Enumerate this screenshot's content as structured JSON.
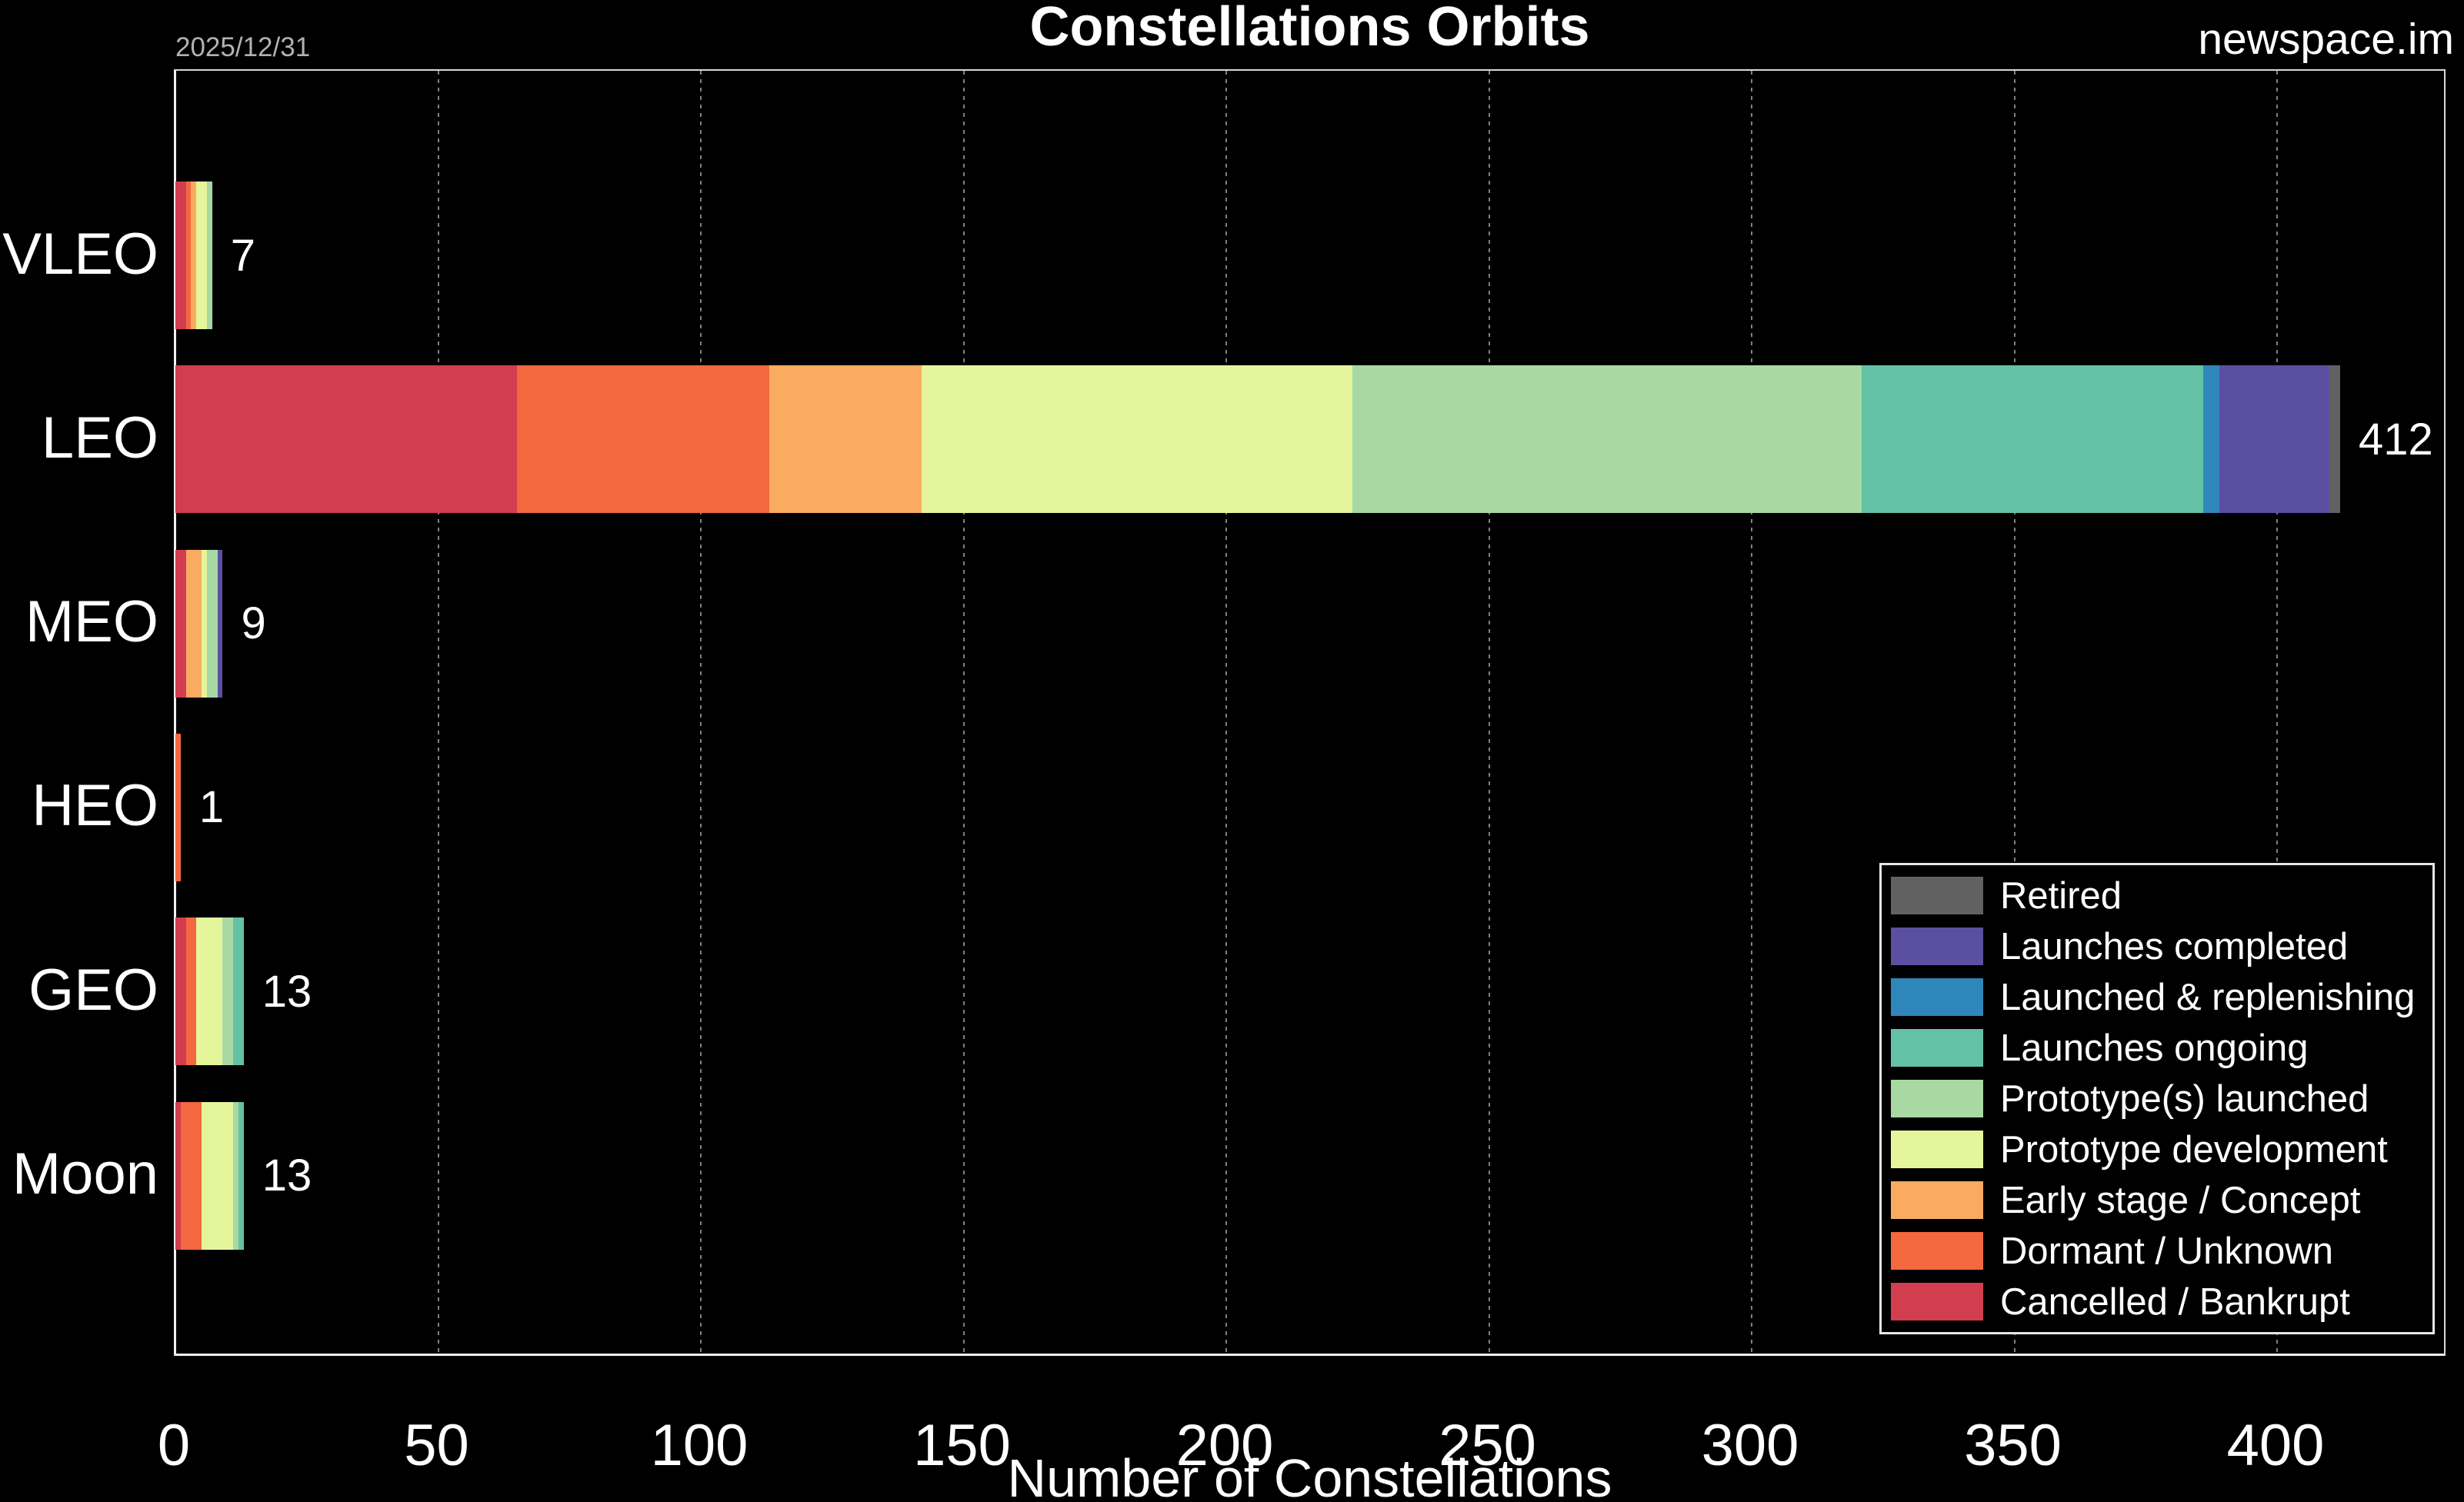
{
  "header": {
    "title": "Constellations Orbits",
    "date": "2025/12/31",
    "brand": "newspace.im"
  },
  "chart_data": {
    "type": "bar",
    "orientation": "horizontal",
    "stacked": true,
    "title": "Constellations Orbits",
    "xlabel": "Number of Constellations",
    "ylabel": "",
    "xlim": [
      0,
      432
    ],
    "xticks": [
      0,
      50,
      100,
      150,
      200,
      250,
      300,
      350,
      400
    ],
    "grid": "vertical-dashed",
    "legend_position": "lower-right",
    "background": "#000000",
    "categories": [
      "VLEO",
      "LEO",
      "MEO",
      "HEO",
      "GEO",
      "Moon"
    ],
    "totals": [
      7,
      412,
      9,
      1,
      13,
      13
    ],
    "stack_order": "last-series-first-from-axis",
    "series": [
      {
        "name": "Retired",
        "color": "#616161",
        "values": [
          0,
          2,
          0,
          0,
          0,
          0
        ]
      },
      {
        "name": "Launches completed",
        "color": "#5b4fa1",
        "values": [
          0,
          21,
          1,
          0,
          0,
          0
        ]
      },
      {
        "name": "Launched & replenishing",
        "color": "#2f86bb",
        "values": [
          0,
          3,
          0,
          0,
          0,
          0
        ]
      },
      {
        "name": "Launches ongoing",
        "color": "#63c2a5",
        "values": [
          0,
          65,
          0,
          0,
          2,
          1
        ]
      },
      {
        "name": "Prototype(s) launched",
        "color": "#a8d9a2",
        "values": [
          1,
          97,
          2,
          0,
          2,
          1
        ]
      },
      {
        "name": "Prototype development",
        "color": "#e5f59b",
        "values": [
          2,
          82,
          1,
          0,
          5,
          6
        ]
      },
      {
        "name": "Early stage / Concept",
        "color": "#fbab60",
        "values": [
          1,
          29,
          3,
          0,
          0,
          0
        ]
      },
      {
        "name": "Dormant / Unknown",
        "color": "#f3683e",
        "values": [
          1,
          48,
          0,
          1,
          2,
          4
        ]
      },
      {
        "name": "Cancelled / Bankrupt",
        "color": "#d23d50",
        "values": [
          2,
          65,
          2,
          0,
          2,
          1
        ]
      }
    ]
  }
}
